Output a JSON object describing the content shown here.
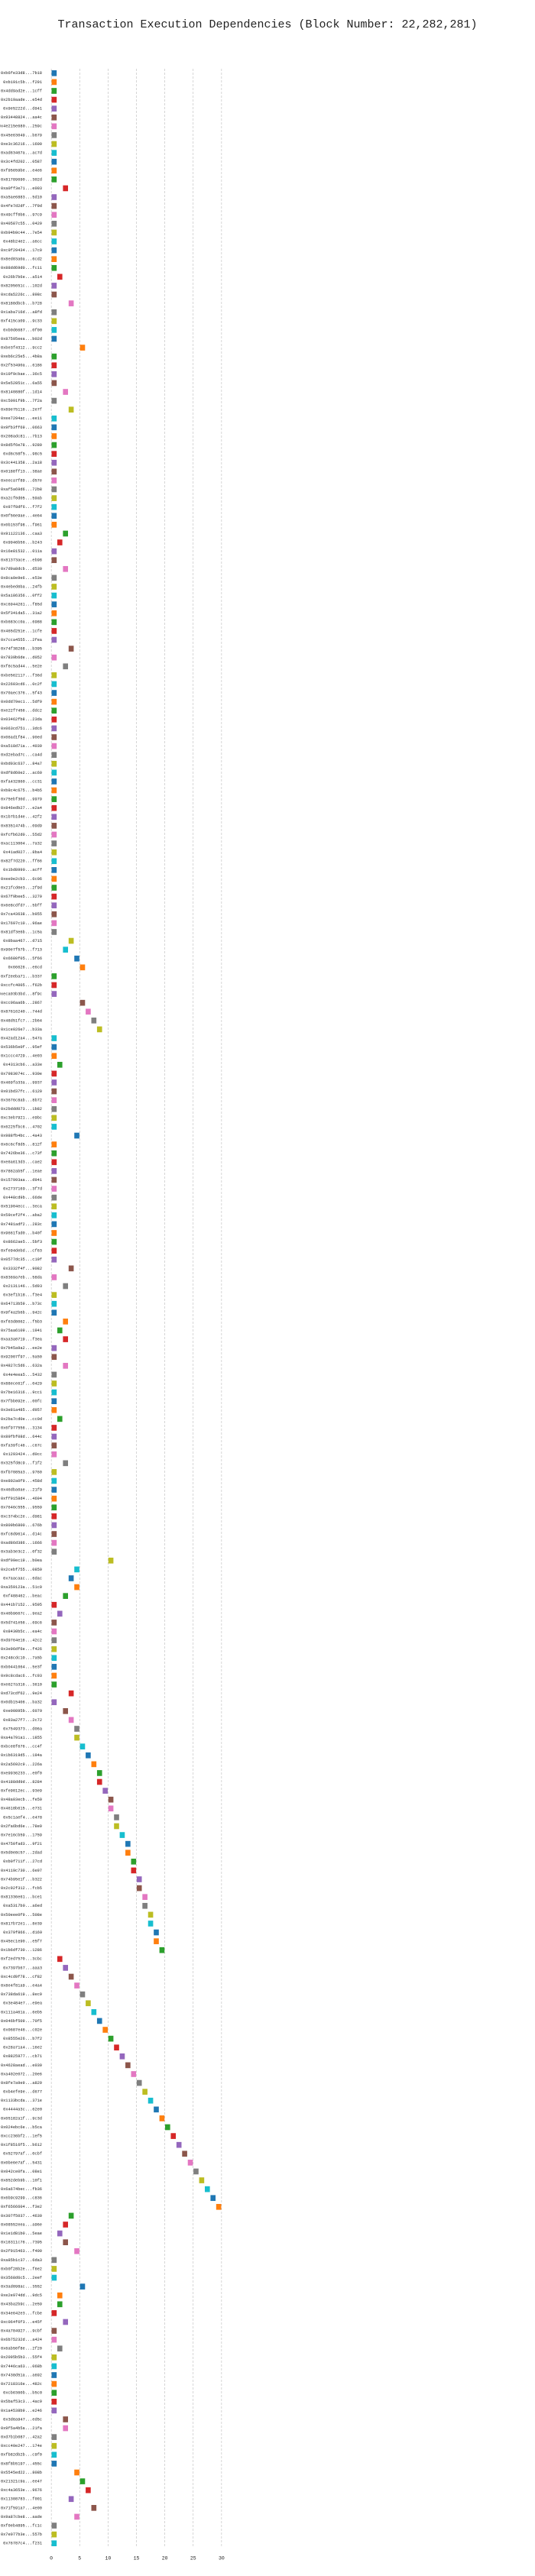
{
  "chart_data": {
    "type": "gantt",
    "title": "Transaction Execution Dependencies (Block Number: 22,282,281)",
    "categories": [
      "0xb6fe33d8...7b18",
      "0xb191c5b...f291",
      "0x4dd9ad2e...1cff",
      "0x2b19aade...e54d",
      "0x9e5222d...d941",
      "0x93448824...aa4c",
      "0x4e215e680...259c",
      "0x45e63049...b679",
      "0xe3c36216...1600",
      "0xad63467a...ac7d",
      "0x3c4fd202...0587",
      "0xf95659be...e4e6",
      "0x81789690...302d",
      "0xa0ff3e71...e003",
      "0xa5ae6883...5d10",
      "0x4fe7d2df...7f9d",
      "0x49cff0b6...97c9",
      "0x40587c55...0429",
      "0xb94b9c44...7e54",
      "0x48b24e2...a6cc",
      "0xc9f29434...17c0",
      "0x8ed03a0a...6cd2",
      "0x88dd69d0...fc11",
      "0x26b7b6e...a514",
      "0x8205651c...102d",
      "0xcda5226c...898c",
      "0x8188dbcb...b728",
      "0x1aba716d...a8fd",
      "0xf415ca09...9c33",
      "0xb0d6687...0f00",
      "0x87595eea...b02d",
      "0xbe3f4312...9cc2",
      "0xeb6c25e5...4b8a",
      "0x2f53490a...6186",
      "0x10f9cbae...36c5",
      "0x5e52851c...6a55",
      "0x8140880f...1d14",
      "0xc5091f9b...7f2a",
      "0x89e75116...2e7f",
      "0xee7294ac...ee11",
      "0x9fb3ff69...0663",
      "0x208adc81...7b13",
      "0x8d5f6e78...9280",
      "0xd6c58f5...98c5",
      "0x3c441358...2a18",
      "0x0188ff13...38ae",
      "0xeeca7f89...d57e",
      "0xaf5a69d6...72b8",
      "0xa2cf0d05...59ab",
      "0x97f8df6...f7f2",
      "0x0f56e9ae...4e64",
      "0x0b153f98...f961",
      "0x91122136...caa3",
      "0x9946b56...b243",
      "0x16e81532...011a",
      "0x81373ace...eb98",
      "0x7d9a8dcb...d530",
      "0x8ca0e9e6...e53e",
      "0x4ebed6ba...24fb",
      "0x5a186356...0ff2",
      "0xc6944261...f85d",
      "0x5f341da5...31a2",
      "0xb683cc0a...6988",
      "0x465d251e...1cfe",
      "0x7cca4555...2fea",
      "0x74f38268...b395",
      "0x7839b6de...d052",
      "0xf6c5ad44...5e2e",
      "0xbe562117...f36d",
      "0x22603cd6...0c2f",
      "0x70aec376...5f43",
      "0x0dd79ec1...5df9",
      "0xe22f7456...ddc2",
      "0x03462fb8...23da",
      "0x063cd751...3dc6",
      "0x06ad1f84...90ed",
      "0xa518d71a...4039",
      "0xd2ebad7c...ca4d",
      "0xbd03c637...84a7",
      "0xdf8d60e2...ac60",
      "0xfa432860...cc31",
      "0xb8c4c675...b4b5",
      "0x75ebf30d...9979",
      "0x846edb27...e2a4",
      "0x1b7b1d4e...42f2",
      "0x8351474b...09d9",
      "0xfcfb62d0...55d2",
      "0xac113004...7a32",
      "0x41ad027...8ba4",
      "0x82f7d220...ff66",
      "0x1bd8990...acff",
      "0xee0e2cb3...6c06",
      "0x21fcd0e3...2f9d",
      "0x67f9bee5...3279",
      "0x6e8cdfd7...5bff",
      "0x7ca43638...b955",
      "0x17697c10...96ae",
      "0x81df3e6b...1c5a",
      "0x8baa467...d715",
      "0x90e7f57b...f713",
      "0x6680f05...5f66",
      "0x66626...e6cd",
      "0xf2eeba71...b337",
      "0xccfc4005...f62b",
      "0xeca03b3bd...8f9c",
      "0xcc06aa6b...2867",
      "0x87616240...744d",
      "0x48d51fc7...2b64",
      "0x1ce026e7...b33a",
      "0x42ad12a4...547a",
      "0x536b5e0f...95ef",
      "0x1ccc4729...4e03",
      "0x4313cb6...a33e",
      "0x7983074c...930e",
      "0x469fa33a...9937",
      "0x01bd37fc...6120",
      "0x3676c8ab...8b72",
      "0x2bddd073...1b82",
      "0xc3eb7921...e9bc",
      "0x6225fbc6...4702",
      "0x988fb4bc...4a43",
      "0x6c6cf8d5...812f",
      "0x7426be36...c73f",
      "0xe6a613d3...cae2",
      "0x7862ab5f...1eae",
      "0x157993aa...d941",
      "0x2737169...3f7d",
      "0x448cd9b...66de",
      "0x51904ecc...3eca",
      "0x59cef2f4...aba2",
      "0x7481adf2...283c",
      "0x9661fad0...b40f",
      "0x8662ae5...5bf3",
      "0xfe94debd...cf63",
      "0x0577dc35...c19f",
      "0x3332f4f...9082",
      "0x8369a7eb...58da",
      "0x2131146...5d93",
      "0x3ef1b18...f3e4",
      "0x64713b59...b73c",
      "0x9f4a2b6b...942c",
      "0xf63d8062...f5b3",
      "0x75aa6109...1941",
      "0xaa3a0719...f3ea",
      "0x7b45a9a2...ee2e",
      "0x92007f97...5a50",
      "0x4827c5d6...632a",
      "0x4e4eea5...5432",
      "0x88ece61f...0429",
      "0x7be16316...9cc1",
      "0x7fbb092e...00fc",
      "0x3e81a485...d957",
      "0x2ba7cd0e...cc0d",
      "0x6f977556...3134",
      "0x89fbf08d...644c",
      "0xfa39fc46...c67c",
      "0x1293424...d0cc",
      "0x325fd8c9...f1f2",
      "0xfb7085a3...9760",
      "0xe802a0f9...458d",
      "0x46dba0ae...21f9",
      "0xff9158d4...4694",
      "0x7646c555...9559",
      "0xc374bc2e...d981",
      "0x809b6800...676b",
      "0xfc8d9614...d14c",
      "0xad86d386...1666",
      "0x3ab3e3c2...0f32",
      "0xdf09ec19...b0ea",
      "0x2cebf755...0850",
      "0x7aacaac...6dac",
      "0xa359123a...51c0",
      "0xf488462...beac",
      "0x441b7152...9595",
      "0x40b9667c...9ea2",
      "0x5d741e56...69c6",
      "0x8430b5c...ea4c",
      "0xd9764e16...42c2",
      "0x3e96df6e...f426",
      "0x248cdc10...7a5b",
      "0xb0441064...5e3f",
      "0x9c8cdac6...fc93",
      "0xe627a316...3610",
      "0xd73cdf62...9e24",
      "0x0db15406...ba32",
      "0xe00895b...6079",
      "0x83a27f7...2c72",
      "0x7549373...d06a",
      "0xa4a791a1...1855",
      "0xbce8f676...cc4f",
      "0x1b6319d5...194a",
      "0x2a5692c9...226a",
      "0xe9936233...e0f0",
      "0x4188dd9d...8284",
      "0xfe9012ec...93e9",
      "0x48a03ecb...fe50",
      "0x4618b615...e731",
      "0x5c1aef4...e478",
      "0x2fa6bd6e...78e9",
      "0x7e16cb59...1759",
      "0x4750fad3...9f21",
      "0x5d0e8c57...2dad",
      "0xb0f711f...27cd",
      "0x4119c730...6e97",
      "0x74b95e1f...b322",
      "0x2c92f312...fcb5",
      "0x81336e61...bce1",
      "0xa5317b0...a6ed",
      "0x50eee0f9...508e",
      "0x817b72e1...8e39",
      "0x379f866...d169",
      "0x45ec1e90...e5f7",
      "0x1b6df730...1286",
      "0xf2ed7570...3cbc",
      "0x7397b67...aaa3",
      "0xc4cd9f78...cf82",
      "0x8e4f81a9...e4a4",
      "0x738da619...8ec9",
      "0x3e484e7...e9ea",
      "0x111a461a...6eb5",
      "0x046bf509...70f5",
      "0x0687e46...c02e",
      "0x8555e26...b7f2",
      "0x28a71a4...16e2",
      "0x8825977...cb71",
      "0x4628aead...e030",
      "0xa402e072...20e6",
      "0x8fe7a9e9...a829",
      "0xb4efe9e...d677",
      "0x1133bcda...371e",
      "0x4444a3c...62e0",
      "0x05182a1f...9c3d",
      "0x024ebc6e...b5ca",
      "0xcc236bf2...1ef5",
      "0x1f8516f5...b612",
      "0x52797af...0cbf",
      "0x0be6e7af...5431",
      "0x042ce0fa...08e1",
      "0x852deb9b...10f1",
      "0x6a674bec...fb36",
      "0x6b9c9299...c836",
      "0xf6566604...f3e2",
      "0x307f5037...4630",
      "0x08552eea...a96e",
      "0x1e1d81b0...5eae",
      "0x16311c76...7395",
      "0x2f915463...f409",
      "0xa85b1c37...6da3",
      "0xb0f28b2e...f6e2",
      "0x3568d6c5...2eef",
      "0x3ad098ac...3552",
      "0xe2e974dd...9dc5",
      "0x43ba2b9c...2e59",
      "0x34e642e3...fcbe",
      "0xc064f6f3...e45f",
      "0x4a784927...9cbf",
      "0x6b75232d...a424",
      "0x6ab50f8e...2f20",
      "0x2095b5b3...55f4",
      "0x7446ca63...068b",
      "0x7438d51a...a692",
      "0x7218316e...482c",
      "0xcb6360b...b5c0",
      "0x5baf53c3...4ac9",
      "0x1a4538b9...e246",
      "0x3d6a947...ed5c",
      "0x9f5a4b5a...21fa",
      "0xd7b1b087...42a2",
      "0xcc40e247...174e",
      "0xfb82db2b...c9f0",
      "0x8f8b5197...455c",
      "0x5545ed22...808b",
      "0x21321c9a...ee47",
      "0xc4a3653e...9676",
      "0x11308783...f001",
      "0x71f591a7...4e00",
      "0x9a87cbe8...aade",
      "0xf0eb4895...fc1c",
      "0x7e077b3e...557b",
      "0x76787c4...f231"
    ],
    "values": [
      0,
      0,
      0,
      0,
      0,
      0,
      0,
      0,
      0,
      0,
      0,
      0,
      0,
      2,
      0,
      0,
      0,
      0,
      0,
      0,
      0,
      0,
      0,
      1,
      0,
      0,
      3,
      0,
      0,
      0,
      0,
      5,
      0,
      0,
      0,
      0,
      2,
      0,
      3,
      0,
      0,
      0,
      0,
      0,
      0,
      0,
      0,
      0,
      0,
      0,
      0,
      0,
      2,
      1,
      0,
      0,
      2,
      0,
      0,
      0,
      0,
      0,
      0,
      0,
      0,
      3,
      0,
      2,
      0,
      0,
      0,
      0,
      0,
      0,
      0,
      0,
      0,
      0,
      0,
      0,
      0,
      0,
      0,
      0,
      0,
      0,
      0,
      0,
      0,
      0,
      0,
      0,
      0,
      0,
      0,
      0,
      0,
      0,
      3,
      2,
      4,
      5,
      0,
      0,
      0,
      5,
      6,
      7,
      8,
      0,
      0,
      0,
      1,
      0,
      0,
      0,
      0,
      0,
      0,
      0,
      4,
      0,
      0,
      0,
      0,
      0,
      0,
      0,
      0,
      0,
      0,
      0,
      0,
      0,
      0,
      3,
      0,
      2,
      0,
      0,
      0,
      2,
      1,
      2,
      0,
      0,
      2,
      0,
      0,
      0,
      0,
      0,
      1,
      0,
      0,
      0,
      0,
      2,
      0,
      0,
      0,
      0,
      0,
      0,
      0,
      0,
      0,
      0,
      10,
      4,
      3,
      4,
      2,
      0,
      1,
      0,
      0,
      0,
      0,
      0,
      0,
      0,
      0,
      3,
      0,
      2,
      3,
      4,
      4,
      5,
      6,
      7,
      8,
      8,
      9,
      10,
      10,
      11,
      11,
      12,
      13,
      13,
      14,
      14,
      15,
      15,
      16,
      16,
      17,
      17,
      18,
      18,
      19,
      1,
      2,
      3,
      4,
      5,
      6,
      7,
      8,
      9,
      10,
      11,
      12,
      13,
      14,
      15,
      16,
      17,
      18,
      19,
      20,
      21,
      22,
      23,
      24,
      25,
      26,
      27,
      28,
      29,
      3,
      2,
      1,
      2,
      4,
      0,
      0,
      0,
      5,
      1,
      1,
      0,
      2,
      0,
      0,
      1,
      0,
      0,
      0,
      0,
      0,
      0,
      0,
      2,
      2,
      0,
      0,
      0,
      0,
      4,
      5,
      6,
      3,
      7,
      4,
      0,
      0,
      0
    ],
    "bar_length": 1,
    "colors": [
      "#1f77b4",
      "#ff7f0e",
      "#2ca02c",
      "#d62728",
      "#9467bd",
      "#8c564b",
      "#e377c2",
      "#7f7f7f",
      "#bcbd22",
      "#17becf"
    ],
    "xlim": [
      -1.5,
      31.5
    ],
    "xticks": [
      0,
      5,
      10,
      15,
      20,
      25,
      30
    ],
    "grid": true
  }
}
